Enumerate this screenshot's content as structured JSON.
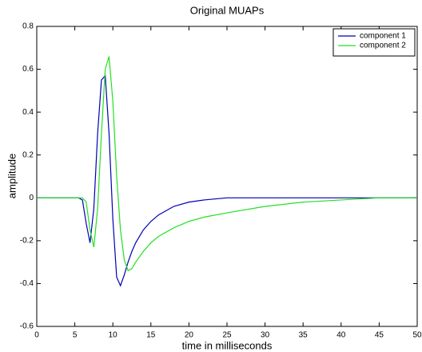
{
  "chart_data": {
    "type": "line",
    "title": "Original MUAPs",
    "xlabel": "time in milliseconds",
    "ylabel": "amplitude",
    "x": [
      0,
      5,
      5.5,
      6,
      6.5,
      7,
      7.5,
      8,
      8.5,
      9,
      9.5,
      10,
      10.5,
      11,
      11.5,
      12,
      12.5,
      13,
      14,
      15,
      16,
      18,
      20,
      22,
      25,
      30,
      35,
      40,
      45,
      50
    ],
    "series": [
      {
        "name": "component 1",
        "color": "#0000b4",
        "values": [
          0,
          0,
          0,
          -0.01,
          -0.12,
          -0.21,
          -0.05,
          0.3,
          0.55,
          0.57,
          0.3,
          -0.1,
          -0.37,
          -0.41,
          -0.36,
          -0.3,
          -0.25,
          -0.21,
          -0.15,
          -0.11,
          -0.08,
          -0.04,
          -0.02,
          -0.01,
          0,
          0,
          0,
          0,
          0,
          0
        ]
      },
      {
        "name": "component 2",
        "color": "#22e022",
        "values": [
          0,
          0,
          0,
          0,
          -0.02,
          -0.15,
          -0.23,
          -0.05,
          0.3,
          0.6,
          0.66,
          0.45,
          0.1,
          -0.15,
          -0.29,
          -0.34,
          -0.33,
          -0.3,
          -0.25,
          -0.21,
          -0.18,
          -0.14,
          -0.11,
          -0.09,
          -0.07,
          -0.04,
          -0.02,
          -0.01,
          0,
          0
        ]
      }
    ],
    "xlim": [
      0,
      50
    ],
    "xticks": [
      0,
      5,
      10,
      15,
      20,
      25,
      30,
      35,
      40,
      45,
      50
    ],
    "ylim": [
      -0.6,
      0.8
    ],
    "yticks": [
      -0.6,
      -0.4,
      -0.2,
      0,
      0.2,
      0.4,
      0.6,
      0.8
    ],
    "grid": false,
    "legend": "northeast"
  }
}
